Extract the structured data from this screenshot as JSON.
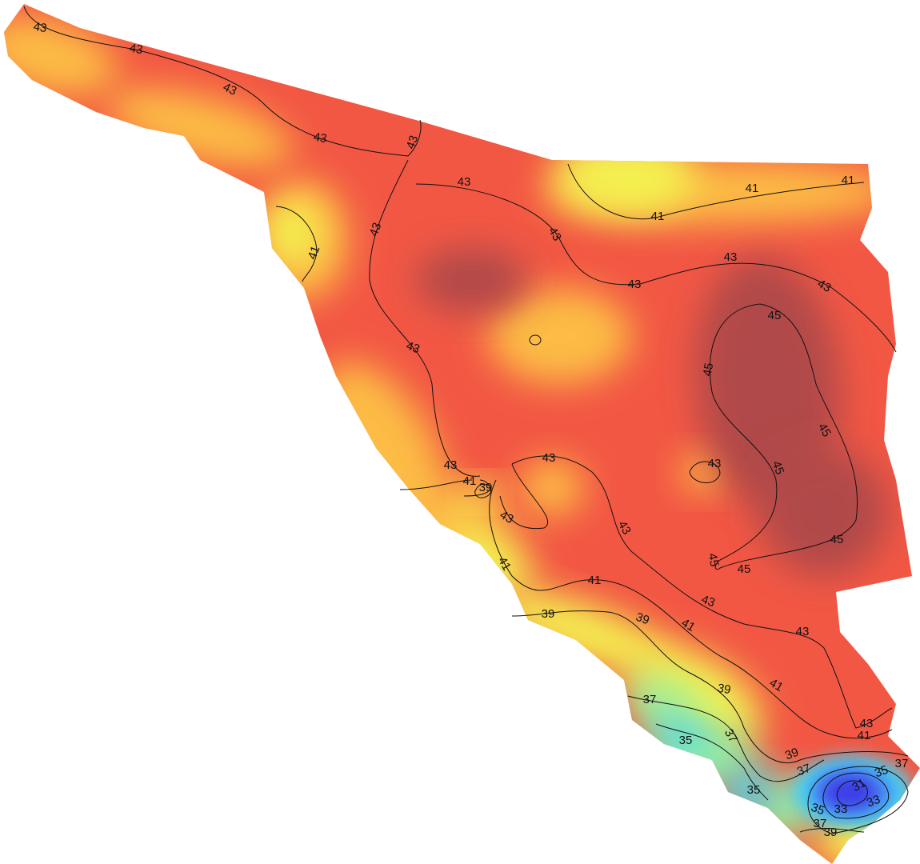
{
  "map": {
    "contour_levels": [
      31,
      33,
      35,
      37,
      39,
      41,
      43,
      45
    ],
    "level_colors": [
      "#3c3ce8",
      "#4a90f2",
      "#44dcf2",
      "#9af0a0",
      "#f4f050",
      "#fcbc44",
      "#f25744",
      "#b04a48"
    ]
  }
}
